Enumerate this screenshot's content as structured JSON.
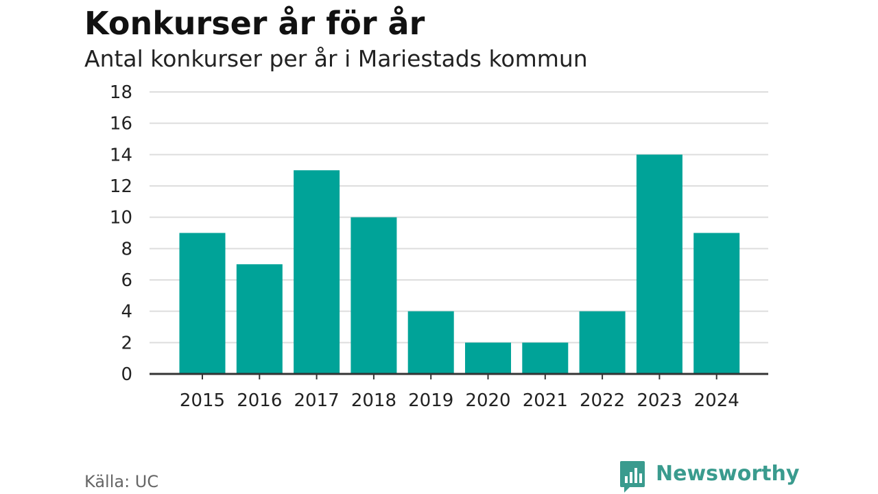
{
  "header": {
    "title": "Konkurser år för år",
    "subtitle": "Antal konkurser per år i Mariestads kommun"
  },
  "footer": {
    "source": "Källa: UC",
    "brand": "Newsworthy"
  },
  "colors": {
    "bar": "#00a398",
    "grid": "#dddddd",
    "axis": "#333333",
    "brand": "#3a9b8e"
  },
  "chart_data": {
    "type": "bar",
    "title": "Konkurser år för år",
    "subtitle": "Antal konkurser per år i Mariestads kommun",
    "categories": [
      "2015",
      "2016",
      "2017",
      "2018",
      "2019",
      "2020",
      "2021",
      "2022",
      "2023",
      "2024"
    ],
    "values": [
      9,
      7,
      13,
      10,
      4,
      2,
      2,
      4,
      14,
      9
    ],
    "xlabel": "",
    "ylabel": "",
    "ylim": [
      0,
      18
    ],
    "yticks": [
      0,
      2,
      4,
      6,
      8,
      10,
      12,
      14,
      16,
      18
    ],
    "grid": true,
    "legend": "none"
  }
}
